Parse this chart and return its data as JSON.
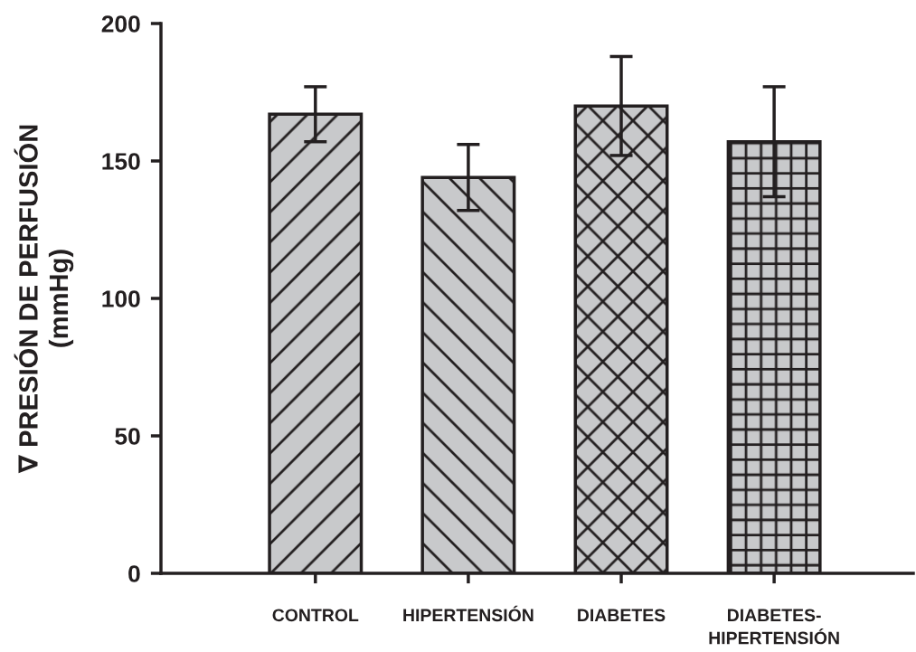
{
  "chart_data": {
    "type": "bar",
    "ylabel": "∇ PRESIÓN DE PERFUSIÓN\n(mmHg)",
    "categories": [
      "CONTROL",
      "HIPERTENSIÓN",
      "DIABETES",
      "DIABETES-\nHIPERTENSIÓN"
    ],
    "values": [
      167,
      144,
      170,
      157
    ],
    "errors": [
      10,
      12,
      18,
      20
    ],
    "color": "#c8c9cb",
    "ylim": [
      0,
      200
    ],
    "yticks": [
      0,
      50,
      100,
      150,
      200
    ],
    "grid": false,
    "legend": false
  }
}
